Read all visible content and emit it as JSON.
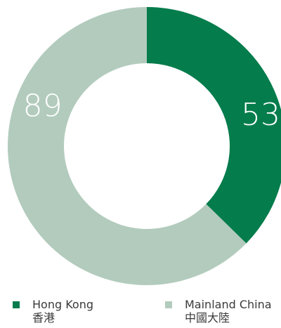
{
  "chart_data": {
    "type": "pie",
    "variant": "donut",
    "title": "",
    "categories": [
      "Hong Kong",
      "Mainland China"
    ],
    "values": [
      53,
      89
    ],
    "colors": [
      "#047c4c",
      "#b2cbbd"
    ],
    "data_labels": [
      "53",
      "89"
    ],
    "legend": {
      "placement": "bottom",
      "items": [
        {
          "en": "Hong Kong",
          "zh": "香港",
          "color": "#047c4c"
        },
        {
          "en": "Mainland China",
          "zh": "中國大陸",
          "color": "#b2cbbd"
        }
      ]
    }
  }
}
